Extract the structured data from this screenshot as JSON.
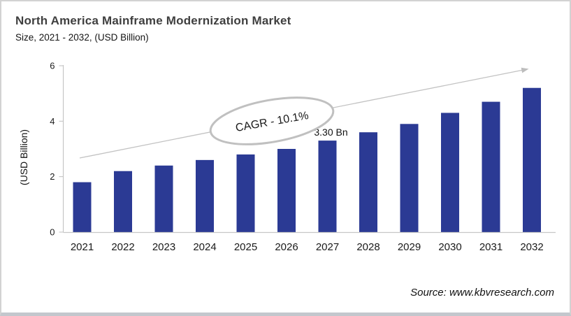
{
  "header": {
    "title": "North America Mainframe Modernization Market",
    "subtitle": "Size, 2021 - 2032, (USD Billion)"
  },
  "chart_data": {
    "type": "bar",
    "categories": [
      "2021",
      "2022",
      "2023",
      "2024",
      "2025",
      "2026",
      "2027",
      "2028",
      "2029",
      "2030",
      "2031",
      "2032"
    ],
    "values": [
      1.8,
      2.2,
      2.4,
      2.6,
      2.8,
      3.0,
      3.3,
      3.6,
      3.9,
      4.3,
      4.7,
      5.2
    ],
    "title": "North America Mainframe Modernization Market Size, 2021 - 2032, (USD Billion)",
    "xlabel": "",
    "ylabel": "(USD Billion)",
    "yticks": [
      0,
      2,
      4,
      6
    ],
    "ylim": [
      0,
      6
    ],
    "grid": false,
    "legend": "none",
    "data_label": {
      "category": "2027",
      "text": "3.30 Bn"
    },
    "annotation": {
      "text": "CAGR - 10.1%"
    },
    "trend_arrow": true,
    "colors": {
      "bar": "#2b3a94",
      "axis": "#bfbfbf",
      "trend_line": "#c2c2c2",
      "ellipse_stroke": "#c0c0c0",
      "tick_text": "#1a1a1a"
    }
  },
  "footer": {
    "source": "Source: www.kbvresearch.com"
  }
}
